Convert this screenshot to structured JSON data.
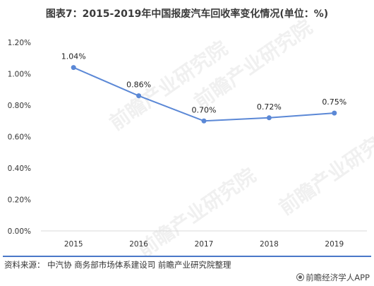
{
  "title": "图表7：2015-2019年中国报废汽车回收率变化情况(单位：%)",
  "source": "资料来源：  中汽协 商务部市场体系建设司 前瞻产业研究院整理",
  "brand": "前瞻经济学人APP",
  "watermark_text": "前瞻产业研究院",
  "colors": {
    "line": "#5b88d6",
    "grid": "#d9d9d9",
    "accent": "#4a78c8"
  },
  "chart_data": {
    "type": "line",
    "title": "图表7：2015-2019年中国报废汽车回收率变化情况(单位：%)",
    "categories": [
      "2015",
      "2016",
      "2017",
      "2018",
      "2019"
    ],
    "series": [
      {
        "values": [
          1.04,
          0.86,
          0.7,
          0.72,
          0.75
        ],
        "labels": [
          "1.04%",
          "0.86%",
          "0.70%",
          "0.72%",
          "0.75%"
        ]
      }
    ],
    "yticks": [
      "0.00%",
      "0.20%",
      "0.40%",
      "0.60%",
      "0.80%",
      "1.00%",
      "1.20%"
    ],
    "ylim": [
      0,
      1.2
    ],
    "grid": false,
    "legend": "none"
  }
}
